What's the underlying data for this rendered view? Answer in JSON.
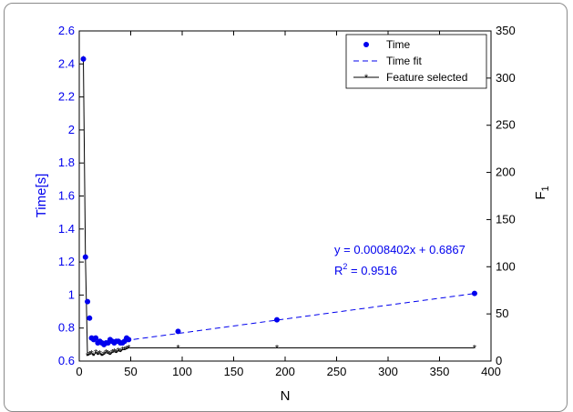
{
  "chart_data": {
    "type": "scatter",
    "xlabel": "N",
    "ylabel_left": "Time[s]",
    "ylabel_right_base": "F",
    "ylabel_right_sub": "1",
    "xlim": [
      0,
      400
    ],
    "ylim_left": [
      0.6,
      2.6
    ],
    "ylim_right": [
      0,
      350
    ],
    "x_ticks": [
      0,
      50,
      100,
      150,
      200,
      250,
      300,
      350,
      400
    ],
    "y_left_ticks": [
      0.6,
      0.8,
      1,
      1.2,
      1.4,
      1.6,
      1.8,
      2,
      2.2,
      2.4,
      2.6
    ],
    "y_right_ticks": [
      0,
      50,
      100,
      150,
      200,
      250,
      300,
      350
    ],
    "grid": false,
    "legend_position": "top-right",
    "legend": [
      {
        "label": "Time",
        "style": "blue-dot"
      },
      {
        "label": "Time fit",
        "style": "blue-dash"
      },
      {
        "label": "Feature selected",
        "style": "black-star-line"
      }
    ],
    "annotation": {
      "equation": "y = 0.0008402x + 0.6867",
      "r2_base": "R",
      "r2_sup": "2",
      "r2_value": " = 0.9516"
    },
    "colors": {
      "time": "#0000ee",
      "features": "#000000",
      "axis_left": "#0000ee"
    },
    "series": [
      {
        "name": "Time",
        "axis": "left",
        "x": [
          4,
          6,
          8,
          10,
          12,
          14,
          16,
          18,
          20,
          22,
          24,
          26,
          28,
          30,
          32,
          34,
          36,
          38,
          40,
          42,
          44,
          46,
          48,
          96,
          192,
          384
        ],
        "y": [
          2.43,
          1.23,
          0.96,
          0.86,
          0.74,
          0.73,
          0.74,
          0.71,
          0.72,
          0.71,
          0.7,
          0.71,
          0.71,
          0.73,
          0.72,
          0.71,
          0.72,
          0.72,
          0.71,
          0.71,
          0.72,
          0.74,
          0.73,
          0.78,
          0.85,
          1.01
        ]
      },
      {
        "name": "Time fit",
        "axis": "left",
        "fit": {
          "slope": 0.0008402,
          "intercept": 0.6867
        },
        "x": [
          44,
          384
        ]
      },
      {
        "name": "Feature selected",
        "axis": "right",
        "x": [
          4,
          6,
          8,
          10,
          12,
          14,
          16,
          18,
          20,
          22,
          24,
          26,
          28,
          30,
          32,
          34,
          36,
          38,
          40,
          42,
          44,
          46,
          48,
          96,
          192,
          384
        ],
        "y": [
          320,
          110,
          6,
          7,
          8,
          6,
          9,
          7,
          8,
          6,
          7,
          9,
          8,
          7,
          9,
          10,
          9,
          11,
          10,
          12,
          12,
          13,
          14,
          14,
          14,
          14
        ]
      }
    ]
  }
}
